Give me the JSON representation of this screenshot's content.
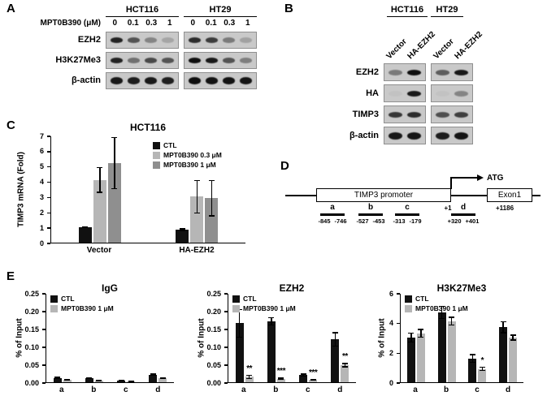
{
  "figure": {
    "panels": {
      "A": {
        "label": "A",
        "cell_lines": [
          "HCT116",
          "HT29"
        ],
        "dose_label": "MPT0B390 (μM)",
        "doses": [
          "0",
          "0.1",
          "0.3",
          "1"
        ],
        "rows": [
          {
            "label": "EZH2",
            "groups": [
              [
                0.85,
                0.6,
                0.35,
                0.18
              ],
              [
                0.8,
                0.72,
                0.4,
                0.2
              ]
            ]
          },
          {
            "label": "H3K27Me3",
            "groups": [
              [
                0.85,
                0.45,
                0.65,
                0.6
              ],
              [
                0.95,
                0.9,
                0.6,
                0.38
              ]
            ]
          },
          {
            "label": "β-actin",
            "groups": [
              [
                0.9,
                0.88,
                0.9,
                0.87
              ],
              [
                0.95,
                0.93,
                0.93,
                0.92
              ]
            ]
          }
        ]
      },
      "B": {
        "label": "B",
        "cell_lines": [
          "HCT116",
          "HT29"
        ],
        "lane_labels": [
          "Vector",
          "HA-EZH2",
          "Vector",
          "HA-EZH2"
        ],
        "rows": [
          {
            "label": "EZH2",
            "groups": [
              [
                0.4,
                0.95
              ],
              [
                0.55,
                0.9
              ]
            ]
          },
          {
            "label": "HA",
            "groups": [
              [
                0.03,
                0.9
              ],
              [
                0.03,
                0.35
              ]
            ]
          },
          {
            "label": "TIMP3",
            "groups": [
              [
                0.75,
                0.8
              ],
              [
                0.62,
                0.7
              ]
            ]
          },
          {
            "label": "β-actin",
            "groups": [
              [
                0.9,
                0.92
              ],
              [
                0.88,
                0.92
              ]
            ]
          }
        ]
      },
      "C": {
        "label": "C"
      },
      "D": {
        "label": "D",
        "promoter_label": "TIMP3 promoter",
        "exon_label": "Exon1",
        "atg_label": "ATG",
        "tss_label": "+1",
        "exon_pos_label": "+1186",
        "regions": [
          {
            "label": "a",
            "start": "-845",
            "end": "-746"
          },
          {
            "label": "b",
            "start": "-527",
            "end": "-453"
          },
          {
            "label": "c",
            "start": "-313",
            "end": "-179"
          },
          {
            "label": "d",
            "start": "+320",
            "end": "+401"
          }
        ]
      },
      "E": {
        "label": "E"
      }
    }
  },
  "chart_data": [
    {
      "id": "C",
      "type": "bar",
      "title": "HCT116",
      "ylabel": "TIMP3 mRNA (Fold)",
      "xlabel": "",
      "ylim": [
        0,
        7
      ],
      "yticks": [
        0,
        1,
        2,
        3,
        4,
        5,
        6,
        7
      ],
      "ytick_labels": [
        "0",
        "1",
        "2",
        "3",
        "4",
        "5",
        "6",
        "7"
      ],
      "categories": [
        "Vector",
        "HA-EZH2"
      ],
      "legend_position": "top-right",
      "grid": false,
      "series": [
        {
          "name": "CTL",
          "color": "#111111",
          "values": [
            1.0,
            0.85
          ],
          "errors": [
            0.05,
            0.1
          ]
        },
        {
          "name": "MPT0B390 0.3 μM",
          "color": "#b6b6b6",
          "values": [
            4.1,
            3.0
          ],
          "errors": [
            0.85,
            1.1
          ]
        },
        {
          "name": "MPT0B390 1 μM",
          "color": "#8f8f8f",
          "values": [
            5.2,
            2.9
          ],
          "errors": [
            1.7,
            1.2
          ]
        }
      ]
    },
    {
      "id": "E1",
      "type": "bar",
      "title": "IgG",
      "ylabel": "% of Input",
      "xlabel": "",
      "ylim": [
        0,
        0.25
      ],
      "yticks": [
        0,
        0.05,
        0.1,
        0.15,
        0.2,
        0.25
      ],
      "ytick_labels": [
        "0.00",
        "0.05",
        "0.10",
        "0.15",
        "0.20",
        "0.25"
      ],
      "categories": [
        "a",
        "b",
        "c",
        "d"
      ],
      "legend_position": "top-left",
      "grid": false,
      "series": [
        {
          "name": "CTL",
          "color": "#111111",
          "values": [
            0.012,
            0.012,
            0.004,
            0.021
          ],
          "errors": [
            0.003,
            0.002,
            0.001,
            0.003
          ]
        },
        {
          "name": "MPT0B390 1 μM",
          "color": "#b6b6b6",
          "values": [
            0.006,
            0.005,
            0.003,
            0.011
          ],
          "errors": [
            0.002,
            0.001,
            0.001,
            0.002
          ]
        }
      ]
    },
    {
      "id": "E2",
      "type": "bar",
      "title": "EZH2",
      "ylabel": "% of Input",
      "xlabel": "",
      "ylim": [
        0,
        0.25
      ],
      "yticks": [
        0,
        0.05,
        0.1,
        0.15,
        0.2,
        0.25
      ],
      "ytick_labels": [
        "0.00",
        "0.05",
        "0.10",
        "0.15",
        "0.20",
        "0.25"
      ],
      "categories": [
        "a",
        "b",
        "c",
        "d"
      ],
      "legend_position": "top-left",
      "grid": false,
      "series": [
        {
          "name": "CTL",
          "color": "#111111",
          "values": [
            0.165,
            0.17,
            0.02,
            0.12
          ],
          "errors": [
            0.04,
            0.012,
            0.005,
            0.02
          ]
        },
        {
          "name": "MPT0B390 1 μM",
          "color": "#b6b6b6",
          "values": [
            0.015,
            0.01,
            0.006,
            0.048
          ],
          "errors": [
            0.006,
            0.003,
            0.002,
            0.006
          ],
          "sig": [
            "**",
            "***",
            "***",
            "**"
          ]
        }
      ]
    },
    {
      "id": "E3",
      "type": "bar",
      "title": "H3K27Me3",
      "ylabel": "% of Input",
      "xlabel": "",
      "ylim": [
        0,
        6
      ],
      "yticks": [
        0,
        2,
        4,
        6
      ],
      "ytick_labels": [
        "0",
        "2",
        "4",
        "6"
      ],
      "categories": [
        "a",
        "b",
        "c",
        "d"
      ],
      "legend_position": "top-left",
      "grid": false,
      "series": [
        {
          "name": "CTL",
          "color": "#111111",
          "values": [
            3.0,
            4.7,
            1.6,
            3.7
          ],
          "errors": [
            0.35,
            0.45,
            0.3,
            0.4
          ]
        },
        {
          "name": "MPT0B390 1 μM",
          "color": "#b6b6b6",
          "values": [
            3.3,
            4.1,
            0.9,
            3.0
          ],
          "errors": [
            0.3,
            0.3,
            0.15,
            0.2
          ],
          "sig": [
            null,
            null,
            "*",
            null
          ]
        }
      ]
    }
  ]
}
